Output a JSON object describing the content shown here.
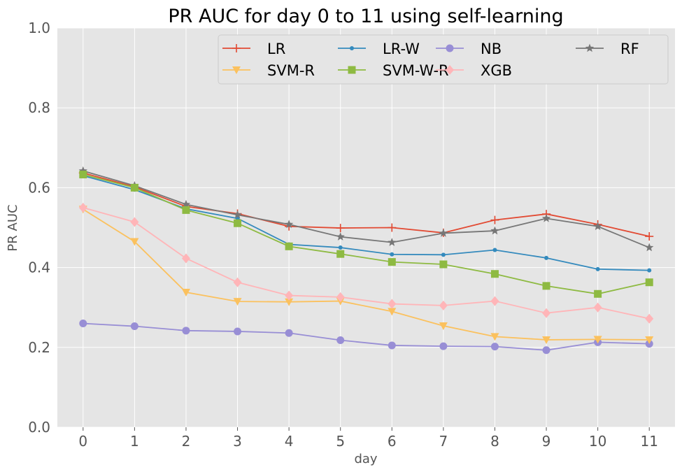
{
  "chart_data": {
    "type": "line",
    "title": "PR AUC for day 0 to 11 using self-learning",
    "xlabel": "day",
    "ylabel": "PR AUC",
    "x": [
      0,
      1,
      2,
      3,
      4,
      5,
      6,
      7,
      8,
      9,
      10,
      11
    ],
    "ylim": [
      0.0,
      1.0
    ],
    "yticks": [
      0.0,
      0.2,
      0.4,
      0.6,
      0.8,
      1.0
    ],
    "ytick_labels": [
      "0.0",
      "0.2",
      "0.4",
      "0.6",
      "0.8",
      "1.0"
    ],
    "xtick_labels": [
      "0",
      "1",
      "2",
      "3",
      "4",
      "5",
      "6",
      "7",
      "8",
      "9",
      "10",
      "11"
    ],
    "grid": true,
    "legend": {
      "position": "top-right",
      "columns": 4
    },
    "series": [
      {
        "name": "LR",
        "color": "#e24a33",
        "marker": "plus",
        "values": [
          0.637,
          0.602,
          0.553,
          0.535,
          0.503,
          0.499,
          0.5,
          0.487,
          0.519,
          0.534,
          0.508,
          0.478
        ]
      },
      {
        "name": "LR-W",
        "color": "#348abd",
        "marker": "dot",
        "values": [
          0.63,
          0.595,
          0.547,
          0.523,
          0.458,
          0.45,
          0.433,
          0.432,
          0.444,
          0.424,
          0.396,
          0.393
        ]
      },
      {
        "name": "NB",
        "color": "#988ed5",
        "marker": "circle",
        "values": [
          0.26,
          0.253,
          0.242,
          0.24,
          0.236,
          0.218,
          0.205,
          0.203,
          0.202,
          0.193,
          0.213,
          0.209
        ]
      },
      {
        "name": "RF",
        "color": "#777777",
        "marker": "star",
        "values": [
          0.642,
          0.605,
          0.558,
          0.532,
          0.508,
          0.477,
          0.463,
          0.486,
          0.492,
          0.523,
          0.503,
          0.45
        ]
      },
      {
        "name": "SVM-R",
        "color": "#fbc15e",
        "marker": "triangle-down",
        "values": [
          0.546,
          0.465,
          0.338,
          0.315,
          0.314,
          0.316,
          0.29,
          0.254,
          0.227,
          0.219,
          0.22,
          0.219
        ]
      },
      {
        "name": "SVM-W-R",
        "color": "#8eba42",
        "marker": "square",
        "values": [
          0.633,
          0.6,
          0.544,
          0.511,
          0.453,
          0.434,
          0.414,
          0.408,
          0.384,
          0.354,
          0.334,
          0.363
        ]
      },
      {
        "name": "XGB",
        "color": "#ffb5b8",
        "marker": "diamond",
        "values": [
          0.55,
          0.514,
          0.423,
          0.363,
          0.33,
          0.326,
          0.309,
          0.305,
          0.316,
          0.286,
          0.3,
          0.272
        ]
      }
    ]
  }
}
